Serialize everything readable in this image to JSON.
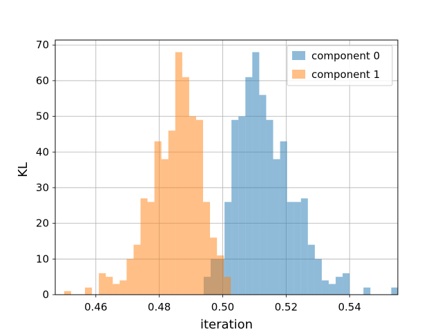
{
  "chart_data": {
    "type": "bar",
    "title": "",
    "xlabel": "iteration",
    "ylabel": "KL",
    "xlim": [
      0.4472,
      0.5552
    ],
    "ylim": [
      0,
      71.4
    ],
    "xticks": [
      0.46,
      0.48,
      0.5,
      0.52,
      0.54
    ],
    "xtick_labels": [
      "0.46",
      "0.48",
      "0.50",
      "0.52",
      "0.54"
    ],
    "yticks": [
      0,
      10,
      20,
      30,
      40,
      50,
      60,
      70
    ],
    "ytick_labels": [
      "0",
      "10",
      "20",
      "30",
      "40",
      "50",
      "60",
      "70"
    ],
    "grid": true,
    "legend_position": "top-right",
    "bin_width": 0.00219,
    "series": [
      {
        "name": "component 0",
        "color": "#1f77b4",
        "alpha": 0.5,
        "bin_start": 0.494,
        "counts": [
          5,
          10,
          10,
          26,
          49,
          50,
          61,
          68,
          56,
          49,
          38,
          43,
          26,
          26,
          27,
          14,
          10,
          4,
          3,
          5,
          6,
          0,
          0,
          2,
          0,
          0,
          0,
          2
        ]
      },
      {
        "name": "component 1",
        "color": "#ff7f0e",
        "alpha": 0.5,
        "bin_start": 0.45,
        "counts": [
          1,
          0,
          0,
          2,
          0,
          6,
          5,
          3,
          4,
          10,
          14,
          27,
          26,
          43,
          38,
          46,
          68,
          61,
          50,
          49,
          26,
          16,
          11,
          5
        ]
      }
    ]
  }
}
